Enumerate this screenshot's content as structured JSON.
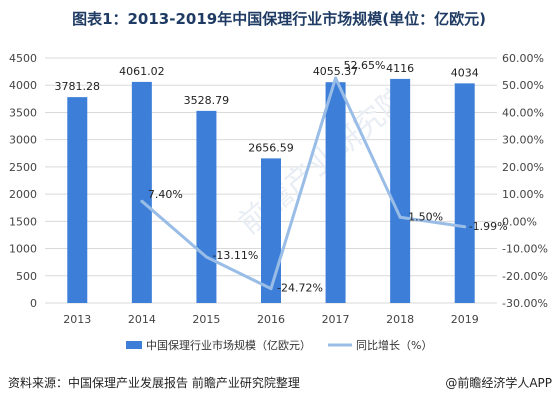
{
  "title": "图表1：2013-2019年中国保理行业市场规模(单位：亿欧元)",
  "source": "资料来源：中国保理产业发展报告 前瞻产业研究院整理",
  "brand": "@前瞻经济学人APP",
  "watermark": "前瞻产业研究院",
  "colors": {
    "bar": "#3d7fd8",
    "line": "#99bde6",
    "grid": "#d9d9d9"
  },
  "chart_data": {
    "type": "bar",
    "categories": [
      "2013",
      "2014",
      "2015",
      "2016",
      "2017",
      "2018",
      "2019"
    ],
    "series": [
      {
        "name": "中国保理行业市场规模（亿欧元）",
        "type": "bar",
        "axis": "left",
        "values": [
          3781.28,
          4061.02,
          3528.79,
          2656.59,
          4055.37,
          4116,
          4034
        ],
        "labels": [
          "3781.28",
          "4061.02",
          "3528.79",
          "2656.59",
          "4055.37",
          "4116",
          "4034"
        ]
      },
      {
        "name": "同比增长（%）",
        "type": "line",
        "axis": "right",
        "values": [
          null,
          7.4,
          -13.11,
          -24.72,
          52.65,
          1.5,
          -1.99
        ],
        "labels": [
          null,
          "7.40%",
          "-13.11%",
          "-24.72%",
          "52.65%",
          "1.50%",
          "-1.99%"
        ]
      }
    ],
    "yleft": {
      "min": 0,
      "max": 4500,
      "step": 500,
      "ticks": [
        "0",
        "500",
        "1000",
        "1500",
        "2000",
        "2500",
        "3000",
        "3500",
        "4000",
        "4500"
      ]
    },
    "yright": {
      "min": -30,
      "max": 60,
      "step": 10,
      "ticks": [
        "-30.00%",
        "-20.00%",
        "-10.00%",
        "0.00%",
        "10.00%",
        "20.00%",
        "30.00%",
        "40.00%",
        "50.00%",
        "60.00%"
      ]
    },
    "grid": true,
    "legend": "bottom"
  }
}
